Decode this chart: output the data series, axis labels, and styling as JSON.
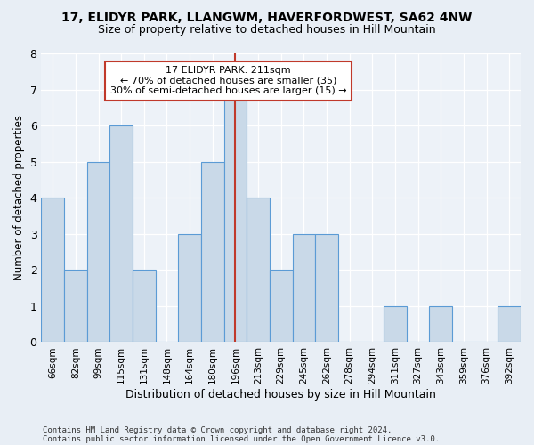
{
  "title1": "17, ELIDYR PARK, LLANGWM, HAVERFORDWEST, SA62 4NW",
  "title2": "Size of property relative to detached houses in Hill Mountain",
  "xlabel": "Distribution of detached houses by size in Hill Mountain",
  "ylabel": "Number of detached properties",
  "categories": [
    "66sqm",
    "82sqm",
    "99sqm",
    "115sqm",
    "131sqm",
    "148sqm",
    "164sqm",
    "180sqm",
    "196sqm",
    "213sqm",
    "229sqm",
    "245sqm",
    "262sqm",
    "278sqm",
    "294sqm",
    "311sqm",
    "327sqm",
    "343sqm",
    "359sqm",
    "376sqm",
    "392sqm"
  ],
  "values": [
    4,
    2,
    5,
    6,
    2,
    0,
    3,
    5,
    7,
    4,
    2,
    3,
    3,
    0,
    0,
    1,
    0,
    1,
    0,
    0,
    1
  ],
  "bar_color": "#c9d9e8",
  "bar_edge_color": "#5b9bd5",
  "highlight_index": 8,
  "highlight_line_color": "#c0392b",
  "annotation_line1": "17 ELIDYR PARK: 211sqm",
  "annotation_line2": "← 70% of detached houses are smaller (35)",
  "annotation_line3": "30% of semi-detached houses are larger (15) →",
  "annotation_box_color": "#c0392b",
  "ylim": [
    0,
    8
  ],
  "yticks": [
    0,
    1,
    2,
    3,
    4,
    5,
    6,
    7,
    8
  ],
  "footer1": "Contains HM Land Registry data © Crown copyright and database right 2024.",
  "footer2": "Contains public sector information licensed under the Open Government Licence v3.0.",
  "bg_color": "#e8eef5",
  "plot_bg_color": "#edf2f8"
}
